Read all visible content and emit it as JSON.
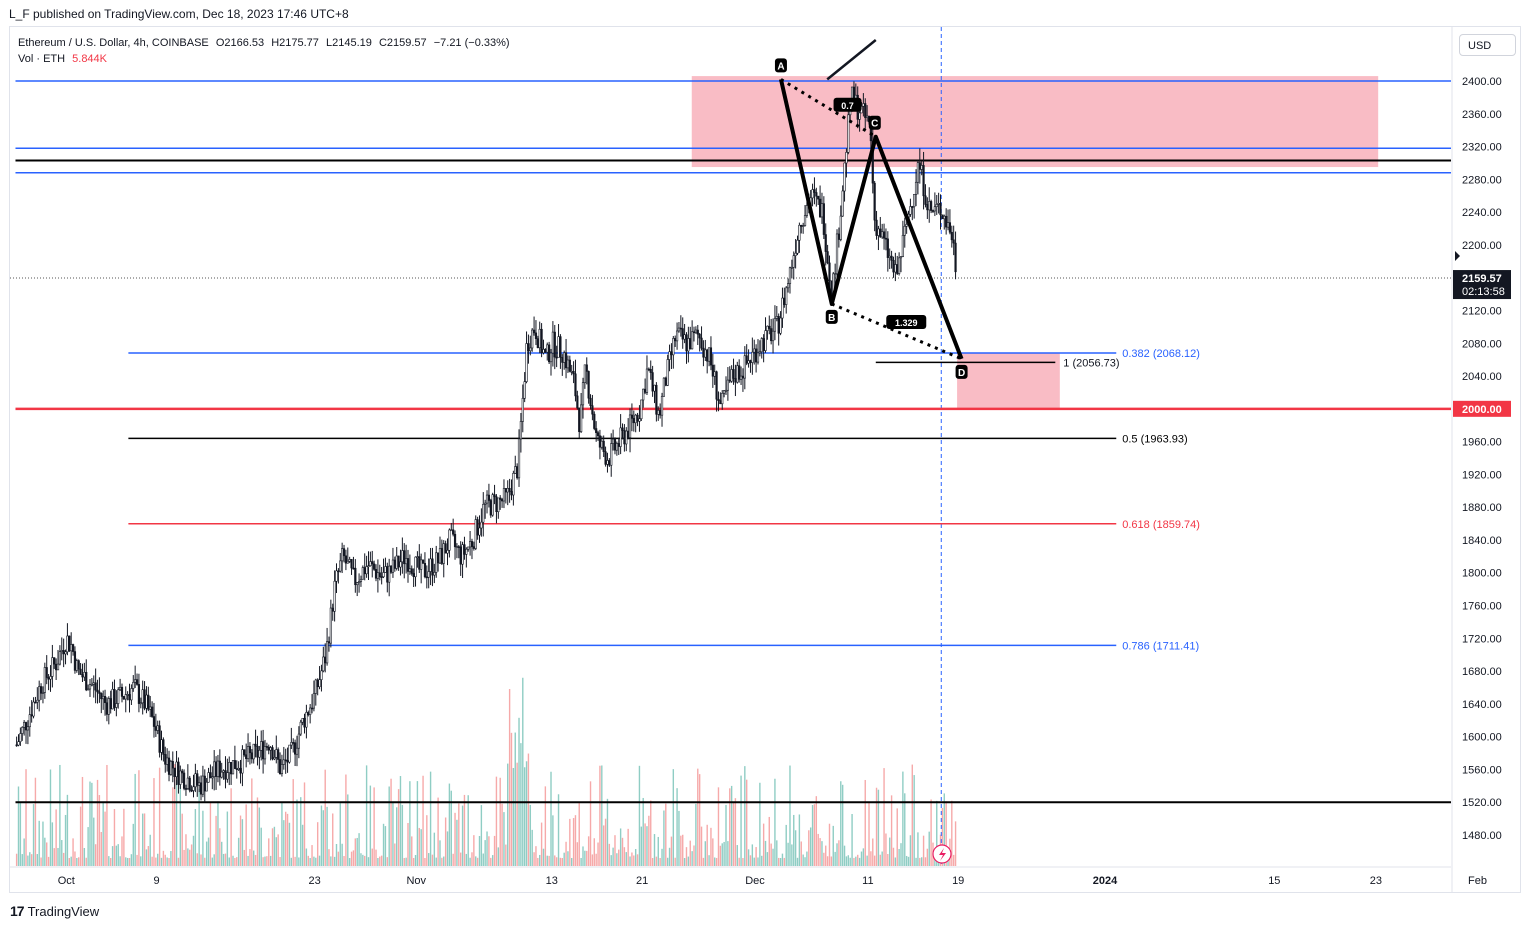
{
  "header": {
    "publisher": "L_F published on TradingView.com, Dec 18, 2023 17:46 UTC+8"
  },
  "legend": {
    "symbol": "Ethereum / U.S. Dollar, 4h, COINBASE",
    "open": "O2166.53",
    "high": "H2175.77",
    "low": "L2145.19",
    "close": "C2159.57",
    "change": "−7.21 (−0.33%)",
    "volume_label": "Vol · ETH",
    "volume_value": "5.844K"
  },
  "currency": "USD",
  "footer": {
    "brand": "TradingView"
  },
  "colors": {
    "up": "#131722",
    "zone_fill": "#f7a5b1",
    "blue_line": "#2962ff",
    "red_line": "#f23645",
    "volume_up": "#8fcdc4",
    "volume_down": "#f6a9a9"
  },
  "chart_data": {
    "type": "candlestick",
    "symbol": "ETHUSD",
    "interval": "4h",
    "y_axis": {
      "min": 1455,
      "max": 2435,
      "ticks": [
        2400,
        2360,
        2320,
        2280,
        2240,
        2200,
        2120,
        2080,
        2040,
        1960,
        1920,
        1880,
        1840,
        1800,
        1760,
        1720,
        1680,
        1640,
        1600,
        1560,
        1520,
        1480
      ],
      "tick_labels": [
        "2400.00",
        "2360.00",
        "2320.00",
        "2280.00",
        "2240.00",
        "2200.00",
        "2120.00",
        "2080.00",
        "2040.00",
        "1960.00",
        "1920.00",
        "1880.00",
        "1840.00",
        "1800.00",
        "1760.00",
        "1720.00",
        "1680.00",
        "1640.00",
        "1600.00",
        "1560.00",
        "1520.00",
        "1480.00"
      ]
    },
    "x_axis": {
      "ticks": [
        {
          "label": "Oct",
          "t": 1
        },
        {
          "label": "9",
          "t": 9
        },
        {
          "label": "23",
          "t": 23
        },
        {
          "label": "Nov",
          "t": 32
        },
        {
          "label": "13",
          "t": 44
        },
        {
          "label": "21",
          "t": 52
        },
        {
          "label": "Dec",
          "t": 62
        },
        {
          "label": "11",
          "t": 72
        },
        {
          "label": "19",
          "t": 80
        },
        {
          "label": "2024",
          "t": 93
        },
        {
          "label": "15",
          "t": 108
        },
        {
          "label": "23",
          "t": 117
        },
        {
          "label": "Feb",
          "t": 126
        }
      ],
      "last_candle_t": 79.9
    },
    "price_path": [
      [
        -3.4,
        1590
      ],
      [
        -2.5,
        1620
      ],
      [
        -1.2,
        1665
      ],
      [
        0.1,
        1690
      ],
      [
        1.0,
        1720
      ],
      [
        1.5,
        1710
      ],
      [
        2.0,
        1680
      ],
      [
        3.5,
        1660
      ],
      [
        4.5,
        1640
      ],
      [
        6.0,
        1650
      ],
      [
        7.0,
        1660
      ],
      [
        8.0,
        1640
      ],
      [
        8.8,
        1615
      ],
      [
        9.7,
        1575
      ],
      [
        11.0,
        1555
      ],
      [
        12.8,
        1540
      ],
      [
        14.5,
        1560
      ],
      [
        16.5,
        1570
      ],
      [
        18.0,
        1580
      ],
      [
        19.0,
        1595
      ],
      [
        20.0,
        1560
      ],
      [
        21.0,
        1580
      ],
      [
        22.0,
        1620
      ],
      [
        23.0,
        1650
      ],
      [
        24.0,
        1700
      ],
      [
        24.8,
        1785
      ],
      [
        25.5,
        1820
      ],
      [
        26.5,
        1790
      ],
      [
        27.7,
        1810
      ],
      [
        29.0,
        1795
      ],
      [
        30.0,
        1805
      ],
      [
        31.0,
        1820
      ],
      [
        32.5,
        1800
      ],
      [
        34.0,
        1815
      ],
      [
        35.0,
        1840
      ],
      [
        36.0,
        1820
      ],
      [
        37.0,
        1840
      ],
      [
        38.0,
        1880
      ],
      [
        40.0,
        1890
      ],
      [
        41.0,
        1930
      ],
      [
        41.8,
        2080
      ],
      [
        42.5,
        2100
      ],
      [
        43.5,
        2060
      ],
      [
        44.0,
        2080
      ],
      [
        45.0,
        2070
      ],
      [
        46.0,
        2030
      ],
      [
        46.5,
        1980
      ],
      [
        47.0,
        2050
      ],
      [
        48.0,
        1960
      ],
      [
        49.0,
        1940
      ],
      [
        50.0,
        1960
      ],
      [
        51.0,
        1980
      ],
      [
        51.8,
        2000
      ],
      [
        52.5,
        2050
      ],
      [
        53.5,
        1990
      ],
      [
        54.0,
        2030
      ],
      [
        55.0,
        2090
      ],
      [
        56.0,
        2080
      ],
      [
        57.0,
        2090
      ],
      [
        58.0,
        2060
      ],
      [
        59.0,
        2000
      ],
      [
        60.0,
        2040
      ],
      [
        61.0,
        2050
      ],
      [
        62.5,
        2080
      ],
      [
        64.0,
        2100
      ],
      [
        65.0,
        2160
      ],
      [
        66.0,
        2230
      ],
      [
        67.0,
        2260
      ],
      [
        68.0,
        2240
      ],
      [
        68.8,
        2140
      ],
      [
        69.5,
        2230
      ],
      [
        70.5,
        2380
      ],
      [
        71.5,
        2360
      ],
      [
        72.2,
        2345
      ],
      [
        72.6,
        2230
      ],
      [
        73.5,
        2200
      ],
      [
        74.5,
        2160
      ],
      [
        75.5,
        2230
      ],
      [
        76.5,
        2300
      ],
      [
        77.5,
        2240
      ],
      [
        78.5,
        2245
      ],
      [
        79.5,
        2210
      ],
      [
        79.9,
        2159.57
      ]
    ],
    "volume_max": 1,
    "current_price": 2159.57,
    "countdown": "02:13:58",
    "pattern": {
      "points": [
        {
          "label": "A",
          "t": 64.3,
          "price": 2402
        },
        {
          "label": "B",
          "t": 68.8,
          "price": 2128
        },
        {
          "label": "C",
          "t": 72.7,
          "price": 2332
        },
        {
          "label": "D",
          "t": 80.3,
          "price": 2061
        }
      ],
      "ratios": [
        {
          "text": "0.7",
          "t": 70.2,
          "price": 2371
        },
        {
          "text": "1.329",
          "t": 75.4,
          "price": 2106
        }
      ],
      "tail_line": {
        "from_t": 68.4,
        "from_price": 2402,
        "to_t": 72.7,
        "to_price": 2450
      }
    },
    "zones": [
      {
        "name": "supply-zone",
        "t_from": 56.4,
        "t_to": 117.2,
        "price_from": 2295,
        "price_to": 2406
      },
      {
        "name": "demand-zone",
        "t_from": 79.9,
        "t_to": 89.0,
        "price_from": 2000,
        "price_to": 2068
      }
    ],
    "horizontal_levels": [
      {
        "name": "level-2400-blue",
        "price": 2400,
        "color": "blue",
        "t_from": -3.5,
        "t_to": 127
      },
      {
        "name": "level-2318-blue",
        "price": 2318,
        "color": "blue",
        "t_from": -3.5,
        "t_to": 127
      },
      {
        "name": "level-2303-black",
        "price": 2303,
        "color": "black",
        "t_from": -3.5,
        "t_to": 127
      },
      {
        "name": "level-2288-blue",
        "price": 2288,
        "color": "blue",
        "t_from": -3.5,
        "t_to": 127
      },
      {
        "name": "level-2000-red",
        "price": 2000,
        "color": "red",
        "t_from": -3.5,
        "t_to": 127
      },
      {
        "name": "level-1520-black",
        "price": 1520,
        "color": "black",
        "t_from": -3.5,
        "t_to": 127
      },
      {
        "name": "level-2056-black-short",
        "price": 2056.73,
        "color": "black",
        "t_from": 72.7,
        "t_to": 88.6
      }
    ],
    "fib_levels": [
      {
        "label": "0.382 (2068.12)",
        "price": 2068.12,
        "color": "blue"
      },
      {
        "label": "0.5 (1963.93)",
        "price": 1963.93,
        "color": "black"
      },
      {
        "label": "0.618 (1859.74)",
        "price": 1859.74,
        "color": "red"
      },
      {
        "label": "0.786 (1711.41)",
        "price": 1711.41,
        "color": "blue"
      }
    ],
    "fib_t_from": 6.5,
    "fib_t_to": 94.0,
    "target_label": "1 (2056.73)",
    "price_badge": "2000.00",
    "vertical_marker_t": 78.5
  }
}
